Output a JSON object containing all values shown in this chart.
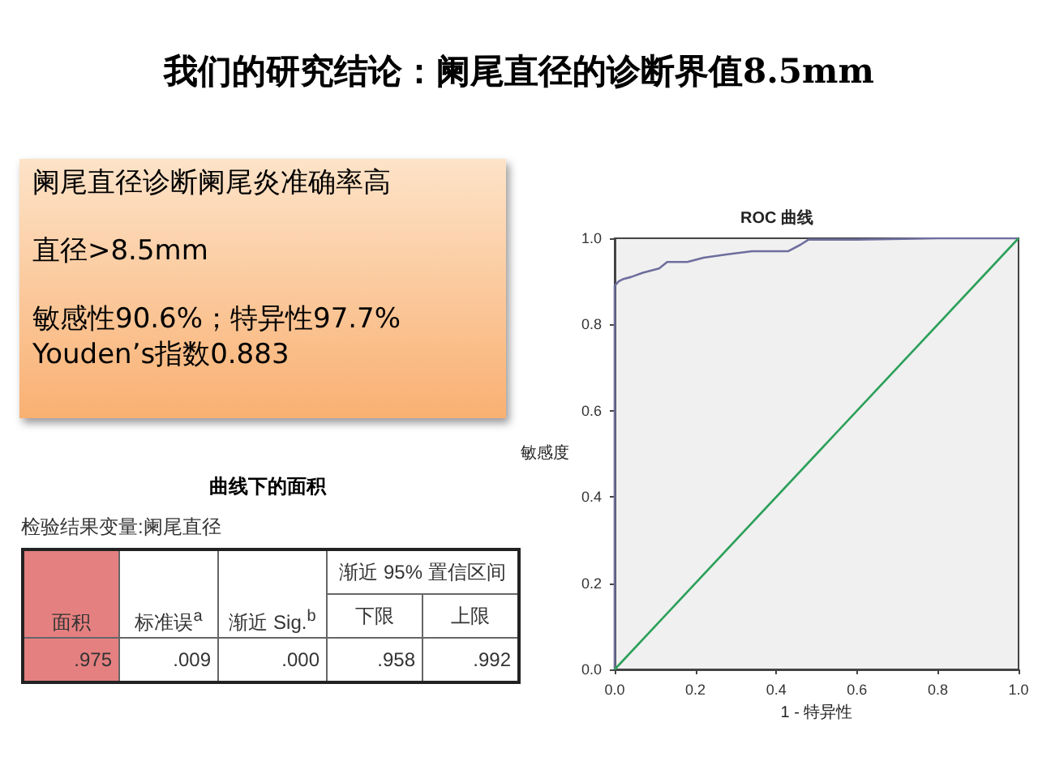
{
  "chart_data": [
    {
      "type": "other",
      "title": "我们的研究结论：阑尾直径的诊断界值8.5mm",
      "annotations": [
        "阑尾直径诊断阑尾炎准确率高",
        "直径>8.5mm",
        "敏感性90.6%；特异性97.7%",
        "Youden’s指数0.883"
      ]
    },
    {
      "type": "other",
      "title": "曲线下的面积",
      "subtitle": "检验结果变量:阑尾直径",
      "annotations": [
        "渐近 95% 置信区间",
        "面积",
        "标准误$^{a}$",
        "渐近 Sig.$^{b}$",
        "下限",
        "上限",
        ".975",
        ".009",
        ".000",
        ".958",
        ".992"
      ]
    },
    {
      "type": "line",
      "title": "ROC 曲线",
      "xlabel": "1 - 特异性",
      "ylabel": "敏感度",
      "xlim": [
        0,
        1
      ],
      "ylim": [
        0,
        1
      ],
      "xticks": [
        {
          "value": 0,
          "label": "0.0"
        },
        {
          "value": 0.2,
          "label": "0.2"
        },
        {
          "value": 0.4,
          "label": "0.4"
        },
        {
          "value": 0.6,
          "label": "0.6"
        },
        {
          "value": 0.8,
          "label": "0.8"
        },
        {
          "value": 1,
          "label": "1.0"
        }
      ],
      "yticks": [
        {
          "value": 0,
          "label": "0.0"
        },
        {
          "value": 0.2,
          "label": "0.2"
        },
        {
          "value": 0.4,
          "label": "0.4"
        },
        {
          "value": 0.6,
          "label": "0.6"
        },
        {
          "value": 0.8,
          "label": "0.8"
        },
        {
          "value": 1,
          "label": "1.0"
        }
      ],
      "grid": false,
      "marker": "none",
      "series": [
        {
          "color": "#6e6e9e",
          "x": [
            0,
            0,
            0.01,
            0.02,
            0.04,
            0.07,
            0.11,
            0.13,
            0.18,
            0.22,
            0.28,
            0.34,
            0.43,
            0.46,
            0.48,
            0.6,
            0.8,
            1
          ],
          "values": [
            0,
            0.89,
            0.9,
            0.905,
            0.91,
            0.92,
            0.93,
            0.945,
            0.945,
            0.955,
            0.963,
            0.97,
            0.97,
            0.985,
            0.997,
            0.997,
            1,
            1
          ]
        },
        {
          "color": "#2ca05a",
          "x": [
            0,
            1
          ],
          "values": [
            0,
            1
          ]
        }
      ]
    }
  ]
}
